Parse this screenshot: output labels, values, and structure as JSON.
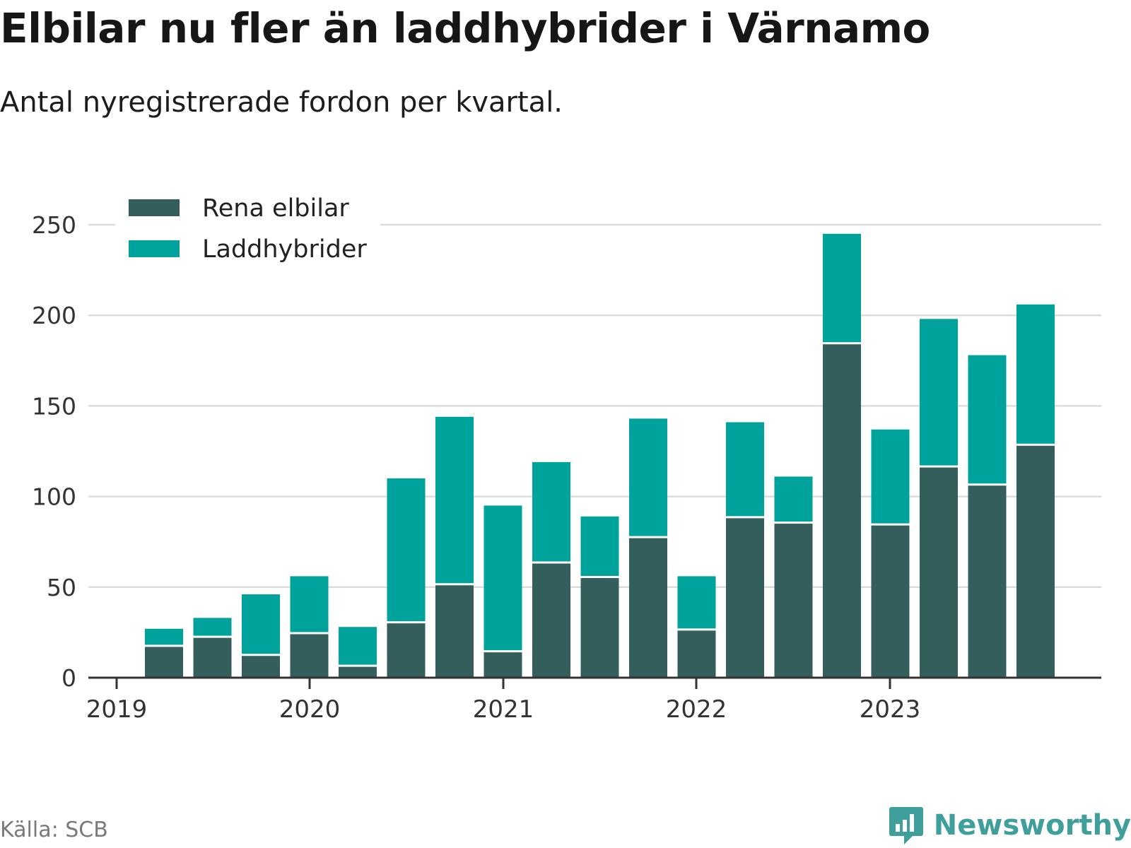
{
  "title": "Elbilar nu fler än laddhybrider i Värnamo",
  "subtitle": "Antal nyregistrerade fordon per kvartal.",
  "source": "Källa: SCB",
  "brand": {
    "name": "Newsworthy",
    "icon": "newsworthy-logo-icon",
    "color": "#3f9f9a"
  },
  "chart_data": {
    "type": "bar",
    "stacked": true,
    "title": "Elbilar nu fler än laddhybrider i Värnamo",
    "subtitle": "Antal nyregistrerade fordon per kvartal.",
    "xlabel": "",
    "ylabel": "",
    "ylim": [
      0,
      250
    ],
    "yticks": [
      0,
      50,
      100,
      150,
      200,
      250
    ],
    "xticks": [
      "2019",
      "2020",
      "2021",
      "2022",
      "2023"
    ],
    "grid": true,
    "legend_position": "top-left",
    "categories": [
      "2019 Q2",
      "2019 Q3",
      "2019 Q4",
      "2020 Q1",
      "2020 Q2",
      "2020 Q3",
      "2020 Q4",
      "2021 Q1",
      "2021 Q2",
      "2021 Q3",
      "2021 Q4",
      "2022 Q1",
      "2022 Q2",
      "2022 Q3",
      "2022 Q4",
      "2023 Q1",
      "2023 Q2",
      "2023 Q3",
      "2023 Q4"
    ],
    "series": [
      {
        "name": "Rena elbilar",
        "color": "#335e5b",
        "values": [
          17,
          22,
          12,
          24,
          6,
          30,
          51,
          14,
          63,
          55,
          77,
          26,
          88,
          85,
          184,
          84,
          116,
          106,
          128
        ]
      },
      {
        "name": "Laddhybrider",
        "color": "#00a39b",
        "values": [
          10,
          11,
          34,
          32,
          22,
          80,
          93,
          81,
          56,
          34,
          66,
          30,
          53,
          26,
          61,
          53,
          82,
          72,
          78
        ]
      }
    ]
  }
}
